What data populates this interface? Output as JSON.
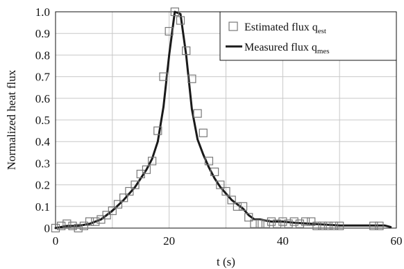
{
  "chart_data": {
    "type": "scatter",
    "title": "",
    "xlabel": "t (s)",
    "ylabel": "Normalized heat flux",
    "xlim": [
      0,
      60
    ],
    "ylim": [
      0,
      1.0
    ],
    "x_ticks": [
      "0",
      "20",
      "40",
      "60"
    ],
    "x_tick_values": [
      0,
      20,
      40,
      60
    ],
    "y_ticks": [
      "0",
      "0.1",
      "0.2",
      "0.3",
      "0.4",
      "0.5",
      "0.6",
      "0.7",
      "0.8",
      "0.9",
      "1.0"
    ],
    "y_tick_values": [
      0,
      0.1,
      0.2,
      0.3,
      0.4,
      0.5,
      0.6,
      0.7,
      0.8,
      0.9,
      1.0
    ],
    "grid": {
      "x": true,
      "y": true,
      "color": "#c8c8c8"
    },
    "legend": {
      "placement": "top-right",
      "entries": [
        {
          "text": "Estimated flux q",
          "sub": "est",
          "marker": "open-square"
        },
        {
          "text": "Measured flux q",
          "sub": "mes",
          "marker": "line"
        }
      ]
    },
    "series": [
      {
        "name": "Estimated flux q_est",
        "style": "open-square",
        "color": "#777777",
        "x": [
          0,
          1,
          2,
          3,
          4,
          5,
          6,
          7,
          8,
          9,
          10,
          11,
          12,
          13,
          14,
          15,
          16,
          17,
          18,
          19,
          20,
          21,
          22,
          23,
          24,
          25,
          26,
          27,
          28,
          29,
          30,
          31,
          32,
          33,
          34,
          35,
          36,
          37,
          38,
          39,
          40,
          41,
          42,
          43,
          44,
          45,
          46,
          47,
          48,
          49,
          50,
          56,
          57
        ],
        "y": [
          0.0,
          0.01,
          0.02,
          0.01,
          0.0,
          0.01,
          0.03,
          0.03,
          0.04,
          0.06,
          0.08,
          0.11,
          0.14,
          0.17,
          0.2,
          0.25,
          0.27,
          0.31,
          0.45,
          0.7,
          0.91,
          1.0,
          0.96,
          0.82,
          0.69,
          0.53,
          0.44,
          0.31,
          0.26,
          0.2,
          0.17,
          0.13,
          0.1,
          0.1,
          0.05,
          0.02,
          0.02,
          0.02,
          0.03,
          0.02,
          0.03,
          0.02,
          0.03,
          0.02,
          0.03,
          0.03,
          0.01,
          0.01,
          0.01,
          0.01,
          0.01,
          0.01,
          0.01
        ]
      },
      {
        "name": "Measured flux q_mes",
        "style": "line",
        "color": "#1a1a1a",
        "x": [
          0,
          2,
          4,
          6,
          8,
          10,
          12,
          14,
          15,
          16,
          17,
          18,
          19,
          20,
          21,
          22,
          23,
          24,
          25,
          26,
          27,
          28,
          29,
          30,
          31,
          32,
          33,
          34,
          35,
          36,
          38,
          40,
          42,
          45,
          48,
          50,
          55,
          58,
          59
        ],
        "y": [
          0.0,
          0.01,
          0.01,
          0.02,
          0.04,
          0.08,
          0.13,
          0.19,
          0.23,
          0.27,
          0.32,
          0.4,
          0.56,
          0.8,
          1.0,
          0.99,
          0.8,
          0.55,
          0.41,
          0.34,
          0.28,
          0.23,
          0.19,
          0.16,
          0.13,
          0.11,
          0.09,
          0.06,
          0.04,
          0.04,
          0.03,
          0.03,
          0.025,
          0.02,
          0.015,
          0.012,
          0.012,
          0.012,
          0.005
        ]
      }
    ]
  }
}
